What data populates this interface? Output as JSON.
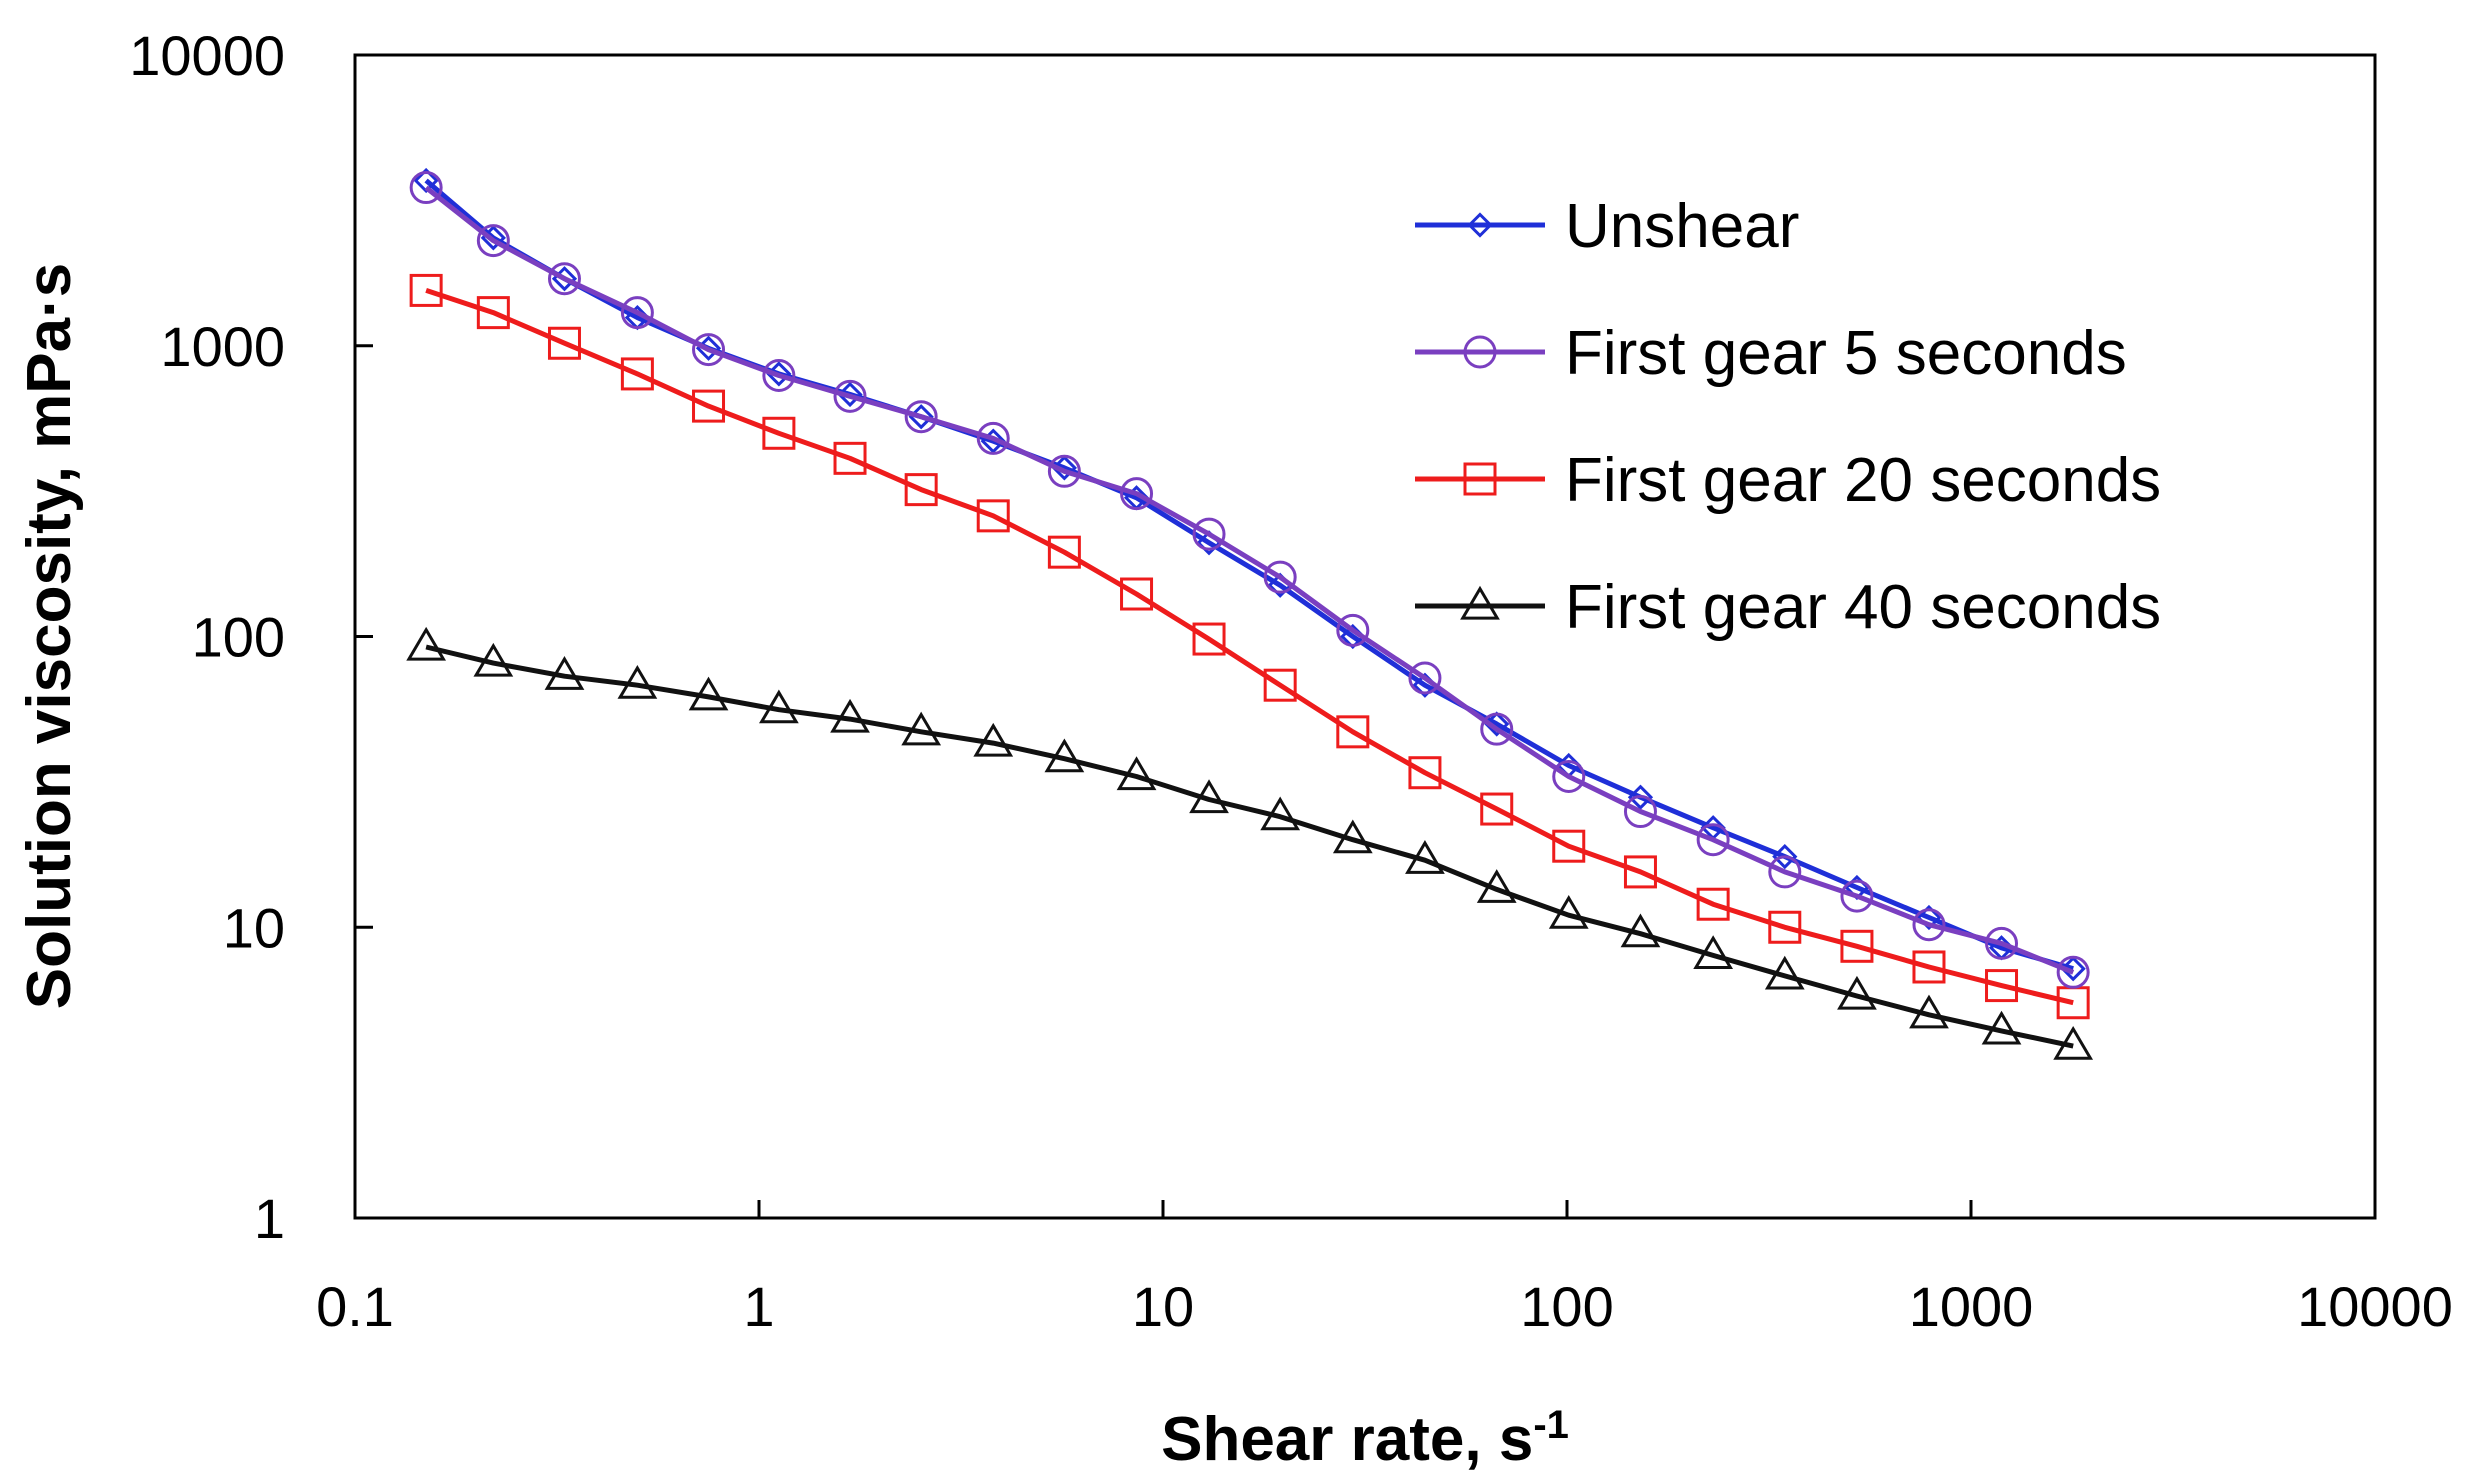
{
  "chart_data": {
    "type": "line",
    "title": "",
    "xlabel": "Shear rate, s",
    "xlabel_superscript": "-1",
    "ylabel": "Solution viscosity, mPa·s",
    "xscale": "log",
    "yscale": "log",
    "xlim": [
      0.1,
      10000
    ],
    "ylim": [
      1,
      10000
    ],
    "x_tick_labels": [
      "0.1",
      "1",
      "10",
      "100",
      "1000",
      "10000"
    ],
    "y_tick_labels": [
      "1",
      "10",
      "100",
      "1000",
      "10000"
    ],
    "x_ticks": [
      0.1,
      1,
      10,
      100,
      1000,
      10000
    ],
    "y_ticks": [
      1,
      10,
      100,
      1000,
      10000
    ],
    "grid": false,
    "legend_position": "top-right",
    "x": [
      0.15,
      0.22,
      0.33,
      0.5,
      0.75,
      1.12,
      1.68,
      2.52,
      3.8,
      5.7,
      8.6,
      13,
      19.5,
      29.5,
      44.5,
      67,
      101,
      152,
      230,
      346,
      522,
      787,
      1190,
      1790
    ],
    "series": [
      {
        "name": "Unshear",
        "color": "#1f2fd8",
        "marker": "diamond",
        "values": [
          3700,
          2350,
          1700,
          1250,
          980,
          800,
          680,
          570,
          470,
          380,
          300,
          210,
          150,
          100,
          68,
          50,
          36,
          28,
          22,
          17.5,
          13.7,
          10.8,
          8.5,
          7.2
        ]
      },
      {
        "name": "First gear 5 seconds",
        "color": "#7a3fc0",
        "marker": "circle",
        "values": [
          3500,
          2300,
          1700,
          1300,
          970,
          790,
          670,
          570,
          480,
          370,
          310,
          225,
          160,
          105,
          72,
          48,
          33,
          25,
          20,
          15.5,
          12.8,
          10.2,
          8.8,
          7.0
        ]
      },
      {
        "name": "First gear 20 seconds",
        "color": "#ee1c1c",
        "marker": "square",
        "values": [
          1550,
          1300,
          1020,
          800,
          620,
          500,
          410,
          320,
          260,
          195,
          140,
          98,
          68,
          47,
          34,
          25.5,
          19,
          15.5,
          12,
          10,
          8.6,
          7.3,
          6.3,
          5.5
        ]
      },
      {
        "name": "First gear 40 seconds",
        "color": "#111111",
        "marker": "triangle",
        "values": [
          92,
          81,
          73,
          68,
          62,
          56,
          52,
          47,
          43,
          38,
          33,
          27.5,
          24,
          20,
          17,
          13.5,
          11,
          9.5,
          8,
          6.8,
          5.8,
          5,
          4.4,
          3.9
        ]
      }
    ]
  }
}
